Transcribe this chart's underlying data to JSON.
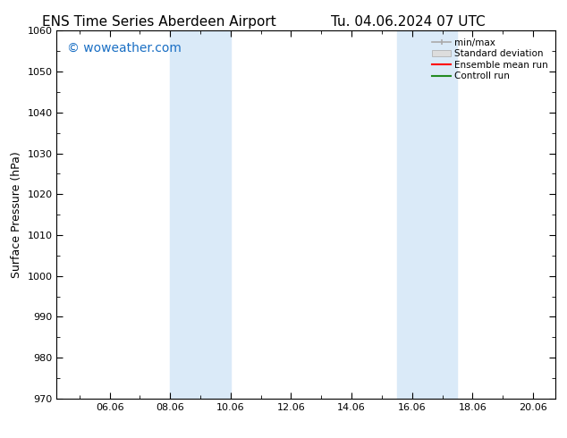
{
  "title_left": "ENS Time Series Aberdeen Airport",
  "title_right": "Tu. 04.06.2024 07 UTC",
  "ylabel": "Surface Pressure (hPa)",
  "ylim": [
    970,
    1060
  ],
  "yticks": [
    970,
    980,
    990,
    1000,
    1010,
    1020,
    1030,
    1040,
    1050,
    1060
  ],
  "xlim_start": 4.25,
  "xlim_end": 20.75,
  "xtick_labels": [
    "06.06",
    "08.06",
    "10.06",
    "12.06",
    "14.06",
    "16.06",
    "18.06",
    "20.06"
  ],
  "xtick_positions": [
    6,
    8,
    10,
    12,
    14,
    16,
    18,
    20
  ],
  "shaded_bands": [
    {
      "x_start": 8.0,
      "x_end": 10.0
    },
    {
      "x_start": 15.5,
      "x_end": 17.5
    }
  ],
  "shaded_color": "#daeaf8",
  "background_color": "#ffffff",
  "watermark_text": "© woweather.com",
  "watermark_color": "#1a6fc4",
  "watermark_fontsize": 10,
  "legend_labels": [
    "min/max",
    "Standard deviation",
    "Ensemble mean run",
    "Controll run"
  ],
  "legend_colors": [
    "#aaaaaa",
    "#cccccc",
    "#ff0000",
    "#228b22"
  ],
  "title_fontsize": 11,
  "tick_fontsize": 8,
  "ylabel_fontsize": 9
}
